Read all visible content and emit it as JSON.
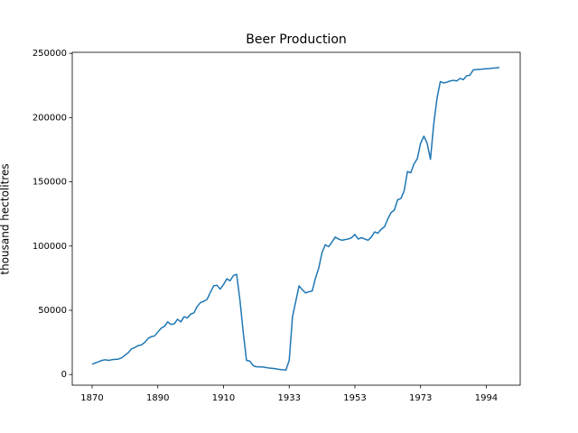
{
  "chart_data": {
    "type": "line",
    "title": "Beer Production",
    "y_label": "thousand hectolitres",
    "color": "#1f77b4",
    "categories": [
      "1870",
      null,
      null,
      null,
      null,
      null,
      null,
      null,
      null,
      null,
      null,
      null,
      null,
      null,
      null,
      null,
      null,
      null,
      null,
      null,
      "1890",
      null,
      null,
      null,
      null,
      null,
      null,
      null,
      null,
      null,
      null,
      null,
      null,
      null,
      null,
      null,
      null,
      null,
      null,
      null,
      "1910",
      null,
      null,
      null,
      null,
      null,
      null,
      null,
      null,
      null,
      null,
      null,
      null,
      null,
      null,
      null,
      null,
      null,
      null,
      null,
      "1933",
      null,
      null,
      null,
      null,
      null,
      null,
      null,
      null,
      null,
      null,
      null,
      null,
      null,
      null,
      null,
      null,
      null,
      null,
      null,
      "1953",
      null,
      null,
      null,
      null,
      null,
      null,
      null,
      null,
      null,
      null,
      null,
      null,
      null,
      null,
      null,
      null,
      null,
      null,
      null,
      "1973",
      null,
      null,
      null,
      null,
      null,
      null,
      null,
      null,
      null,
      null,
      null,
      null,
      null,
      null,
      null,
      null,
      null,
      null,
      null,
      "1994",
      null,
      null,
      null,
      null
    ],
    "values": [
      8000,
      9000,
      10000,
      11000,
      11500,
      11000,
      11500,
      11800,
      12000,
      13000,
      15000,
      17000,
      20000,
      21000,
      22500,
      23000,
      25000,
      28000,
      29500,
      30000,
      33000,
      36000,
      37500,
      41000,
      39000,
      39500,
      43000,
      41000,
      45000,
      44000,
      47000,
      48000,
      53000,
      56000,
      57000,
      58500,
      64000,
      69000,
      69500,
      66500,
      70000,
      74500,
      73000,
      77000,
      78000,
      58000,
      33000,
      11000,
      10500,
      7000,
      6000,
      6000,
      5800,
      5400,
      5000,
      4800,
      4400,
      4000,
      3700,
      3500,
      11000,
      45000,
      57000,
      69000,
      66000,
      63500,
      64500,
      65000,
      75000,
      83000,
      95000,
      101000,
      99500,
      103000,
      107000,
      105500,
      104500,
      105000,
      105500,
      106500,
      109000,
      105500,
      106500,
      105500,
      104500,
      107000,
      111000,
      110000,
      113000,
      115000,
      121000,
      126000,
      128000,
      136000,
      137000,
      143000,
      158000,
      157000,
      164000,
      168000,
      180000,
      185500,
      180000,
      167500,
      195000,
      215000,
      228000,
      227000,
      227500,
      228500,
      229000,
      228500,
      230500,
      229500,
      232500,
      233000,
      237000,
      237500,
      237500,
      237800,
      238000,
      238200,
      238500,
      238700,
      239000
    ],
    "ylim": [
      -8300,
      250800
    ],
    "yticks": [
      0,
      50000,
      100000,
      150000,
      200000,
      250000
    ]
  }
}
